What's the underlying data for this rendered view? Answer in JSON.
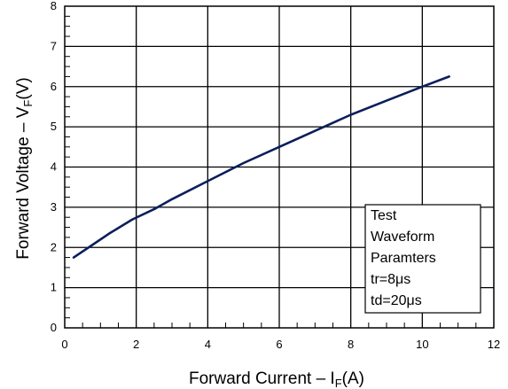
{
  "chart_data": {
    "type": "line",
    "title": "",
    "xlabel": {
      "main": "Forward Current – I",
      "sub": "F",
      "unit": "(A)"
    },
    "ylabel": {
      "main": "Forward Voltage – V",
      "sub": "F",
      "unit": "(V)"
    },
    "xlim": [
      0,
      12
    ],
    "ylim": [
      0,
      8
    ],
    "x_ticks": [
      "0",
      "2",
      "4",
      "6",
      "8",
      "10",
      "12"
    ],
    "y_ticks": [
      "0",
      "1",
      "2",
      "3",
      "4",
      "5",
      "6",
      "7",
      "8"
    ],
    "grid": true,
    "series": [
      {
        "color": "#0a1e5a",
        "x": [
          0.25,
          0.75,
          1.25,
          1.9,
          2.5,
          3.0,
          4.0,
          5.0,
          6.0,
          7.0,
          8.0,
          9.0,
          10.0,
          10.75
        ],
        "y": [
          1.75,
          2.05,
          2.35,
          2.7,
          2.95,
          3.2,
          3.65,
          4.1,
          4.5,
          4.9,
          5.3,
          5.65,
          6.0,
          6.25
        ]
      }
    ],
    "annotation": {
      "lines": [
        "Test",
        "Waveform",
        "Paramters",
        "tr=8μs",
        "td=20μs"
      ],
      "position": "bottom-right"
    }
  }
}
